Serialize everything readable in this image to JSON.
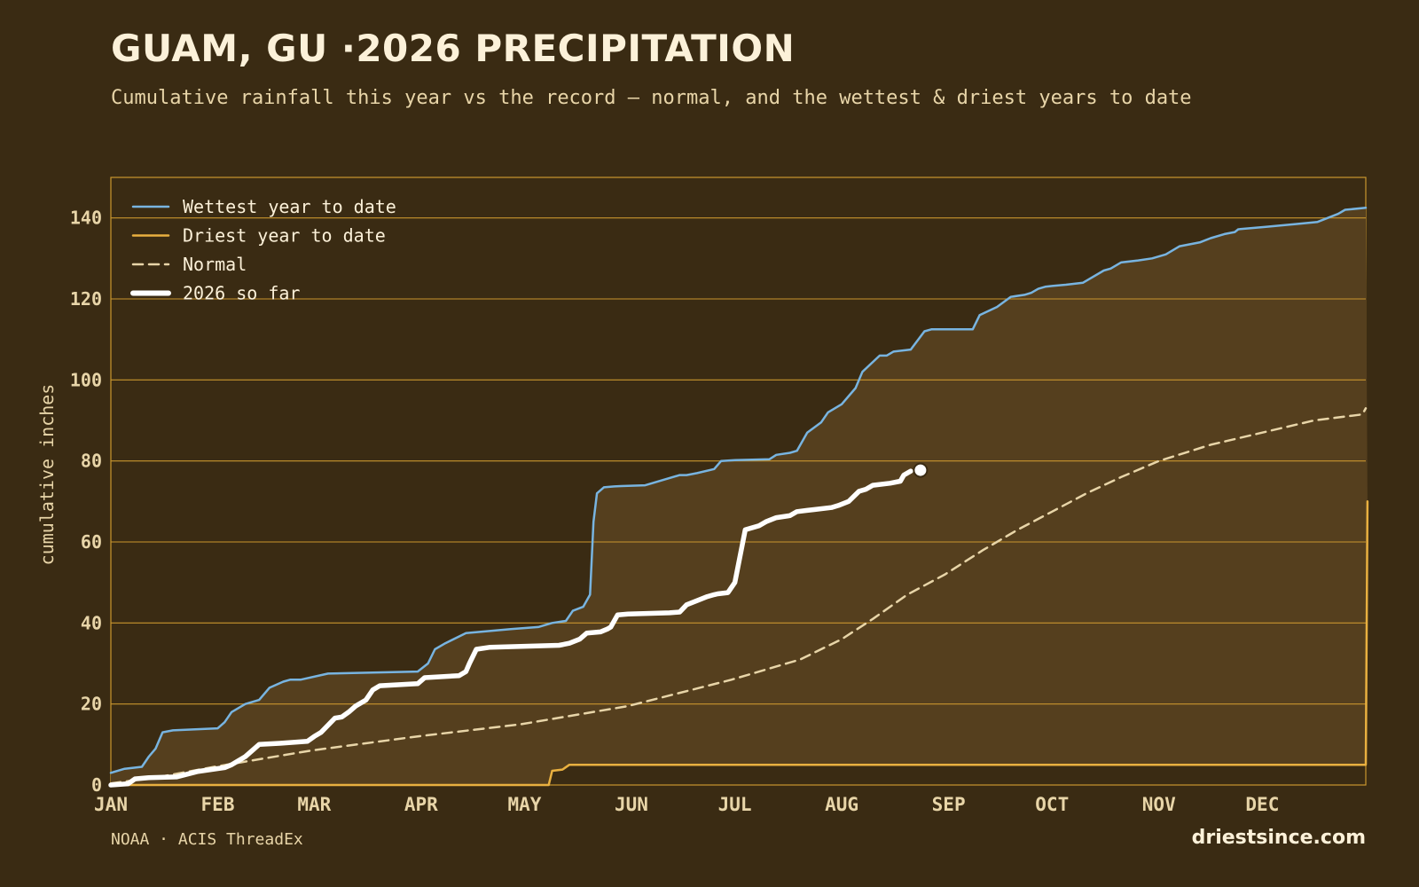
{
  "header": {
    "title": "GUAM, GU ·2026 PRECIPITATION",
    "subtitle": "Cumulative rainfall this year vs the record — normal, and the wettest & driest years to date"
  },
  "footer": {
    "source": "NOAA · ACIS ThreadEx",
    "brand": "driestsince.com"
  },
  "colors": {
    "background": "#3a2b13",
    "band_fill": "#553f1e",
    "grid": "#c9962e",
    "wettest": "#78b4e0",
    "driest": "#e9b040",
    "normal": "#e8d5a8",
    "current": "#ffffff",
    "text": "#e8d5a8"
  },
  "chart_data": {
    "type": "line",
    "ylabel": "cumulative inches",
    "xlabel": "",
    "ylim": [
      0,
      150
    ],
    "xlim_days": [
      1,
      365
    ],
    "y_ticks": [
      0,
      20,
      40,
      60,
      80,
      100,
      120,
      140
    ],
    "x_ticks": [
      {
        "label": "JAN",
        "day": 1
      },
      {
        "label": "FEB",
        "day": 32
      },
      {
        "label": "MAR",
        "day": 60
      },
      {
        "label": "APR",
        "day": 91
      },
      {
        "label": "MAY",
        "day": 121
      },
      {
        "label": "JUN",
        "day": 152
      },
      {
        "label": "JUL",
        "day": 182
      },
      {
        "label": "AUG",
        "day": 213
      },
      {
        "label": "SEP",
        "day": 244
      },
      {
        "label": "OCT",
        "day": 274
      },
      {
        "label": "NOV",
        "day": 305
      },
      {
        "label": "DEC",
        "day": 335
      }
    ],
    "grid": true,
    "legend_position": "top-left",
    "series": [
      {
        "key": "wettest",
        "name": "Wettest year to date",
        "style": "solid",
        "x": [
          1,
          5,
          10,
          12,
          14,
          16,
          19,
          32,
          34,
          36,
          40,
          44,
          47,
          51,
          53,
          56,
          64,
          90,
          93,
          95,
          98,
          104,
          117,
          125,
          129,
          133,
          135,
          138,
          140,
          141,
          142,
          144,
          147,
          149,
          156,
          166,
          168,
          171,
          176,
          178,
          182,
          192,
          194,
          198,
          200,
          203,
          207,
          209,
          213,
          217,
          219,
          224,
          226,
          228,
          233,
          237,
          239,
          251,
          253,
          258,
          262,
          266,
          268,
          270,
          272,
          274,
          278,
          283,
          289,
          291,
          294,
          299,
          303,
          307,
          311,
          317,
          320,
          324,
          327,
          328,
          336,
          345,
          351,
          357,
          359,
          365
        ],
        "y": [
          3,
          4,
          4.5,
          7,
          9,
          13,
          13.5,
          14,
          15.5,
          18,
          20,
          21,
          24,
          25.5,
          26,
          26,
          27.5,
          28,
          30,
          33.5,
          35,
          37.5,
          38.5,
          39,
          40,
          40.5,
          43,
          44,
          47,
          65,
          72,
          73.5,
          73.7,
          73.8,
          74,
          76.5,
          76.5,
          77,
          78,
          80,
          80.2,
          80.4,
          81.5,
          82,
          82.5,
          87,
          89.5,
          92,
          94,
          98,
          102,
          106,
          106,
          107,
          107.5,
          112,
          112.5,
          112.5,
          116,
          118,
          120.5,
          121,
          121.5,
          122.5,
          123,
          123.2,
          123.5,
          124,
          127,
          127.5,
          129,
          129.5,
          130,
          131,
          133,
          134,
          135,
          136,
          136.5,
          137.2,
          137.8,
          138.5,
          139,
          141,
          142,
          142.5
        ]
      },
      {
        "key": "driest",
        "name": "Driest year to date",
        "style": "solid",
        "x": [
          1,
          128,
          129,
          132,
          134,
          365,
          365.5
        ],
        "y": [
          0,
          0,
          3.5,
          3.8,
          5,
          5,
          70
        ]
      },
      {
        "key": "normal",
        "name": "Normal",
        "style": "dashed",
        "x": [
          1,
          15,
          31,
          59,
          90,
          120,
          151,
          181,
          201,
          213,
          222,
          232,
          243,
          254,
          264,
          274,
          284,
          294,
          305,
          320,
          335,
          350,
          364,
          365
        ],
        "y": [
          0.4,
          2,
          4.5,
          8.5,
          12,
          15,
          19.5,
          26,
          31,
          36,
          41,
          47,
          52,
          58,
          63,
          67.5,
          72,
          76,
          80,
          84,
          87,
          90,
          91.5,
          93
        ]
      },
      {
        "key": "current",
        "name": "2026 so far",
        "style": "thick",
        "x": [
          1,
          6,
          8,
          12,
          20,
          26,
          30,
          34,
          36,
          38,
          40,
          44,
          50,
          58,
          60,
          62,
          66,
          68,
          70,
          72,
          75,
          77,
          79,
          90,
          92,
          102,
          104,
          105,
          107,
          111,
          131,
          134,
          137,
          139,
          143,
          145,
          146,
          148,
          151,
          163,
          166,
          168,
          171,
          174,
          176,
          177,
          180,
          182,
          185,
          189,
          191,
          194,
          198,
          200,
          203,
          205,
          210,
          212,
          215,
          218,
          220,
          222,
          227,
          230,
          231,
          233
        ],
        "y": [
          0,
          0.3,
          1.5,
          1.8,
          2,
          3.3,
          3.8,
          4.3,
          5,
          6,
          7,
          10,
          10.3,
          10.8,
          12,
          13,
          16.5,
          16.8,
          18,
          19.5,
          21,
          23.5,
          24.5,
          25,
          26.5,
          27,
          28,
          30,
          33.5,
          34,
          34.5,
          35,
          36,
          37.5,
          37.8,
          38.5,
          39,
          42,
          42.2,
          42.5,
          42.7,
          44.5,
          45.5,
          46.5,
          47,
          47.2,
          47.5,
          50,
          63,
          64,
          65,
          66,
          66.5,
          67.5,
          67.8,
          68,
          68.5,
          69,
          70,
          72.5,
          73,
          74,
          74.5,
          75,
          76.5,
          77.5
        ]
      }
    ],
    "current_marker": {
      "day": 233,
      "value": 77.5
    }
  }
}
